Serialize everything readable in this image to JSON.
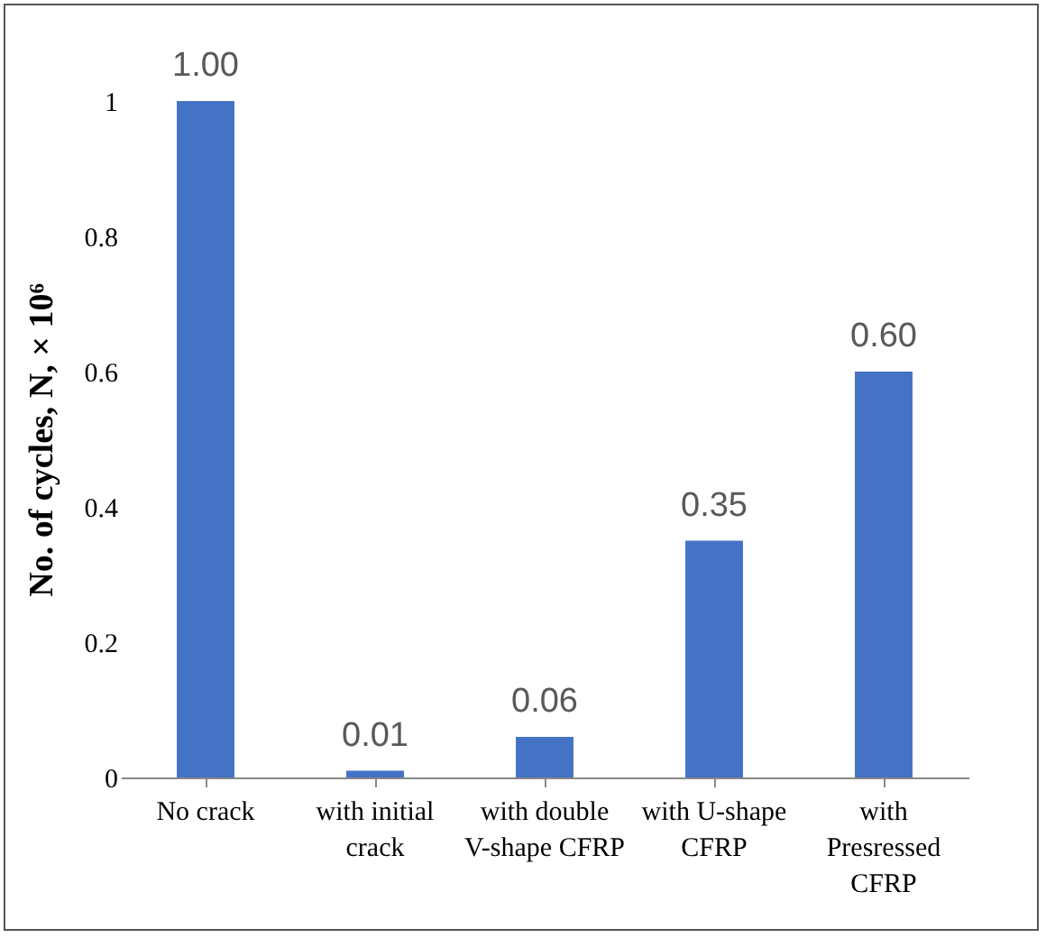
{
  "chart_data": {
    "type": "bar",
    "ylabel": "No. of cycles, N, × 10⁶",
    "categories": [
      "No crack",
      "with initial crack",
      "with double V-shape CFRP",
      "with U-shape CFRP",
      "with Presressed CFRP"
    ],
    "values": [
      1.0,
      0.01,
      0.06,
      0.35,
      0.6
    ],
    "value_labels": [
      "1.00",
      "0.01",
      "0.06",
      "0.35",
      "0.60"
    ],
    "color": "#4472c4",
    "ylim": [
      0,
      1
    ],
    "yticks": [
      0,
      0.2,
      0.4,
      0.6,
      0.8,
      1
    ],
    "grid": false
  }
}
